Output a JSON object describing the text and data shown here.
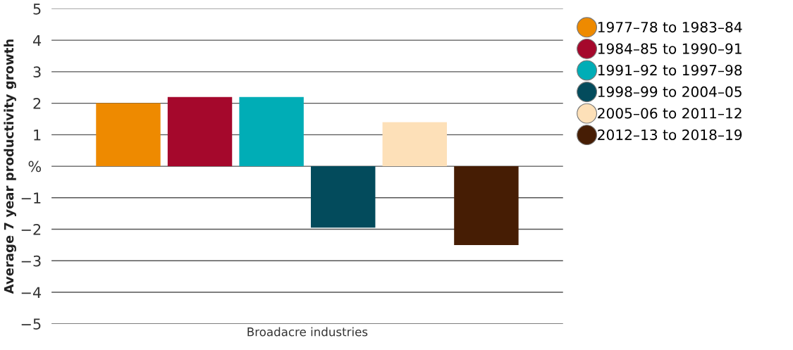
{
  "chart_data": {
    "type": "bar",
    "ylabel": "Average 7 year productivity growth",
    "categories": [
      "Broadacre industries"
    ],
    "series": [
      {
        "name": "1977–78 to 1983–84",
        "color": "#ee8a00",
        "values": [
          2.0
        ]
      },
      {
        "name": "1984–85 to 1990–91",
        "color": "#a5082c",
        "values": [
          2.2
        ]
      },
      {
        "name": "1991–92 to 1997–98",
        "color": "#00adb6",
        "values": [
          2.2
        ]
      },
      {
        "name": "1998–99 to 2004–05",
        "color": "#034b5c",
        "values": [
          -1.95
        ]
      },
      {
        "name": "2005–06 to 2011–12",
        "color": "#fde0b8",
        "values": [
          1.4
        ]
      },
      {
        "name": "2012–13 to 2018–19",
        "color": "#461d04",
        "values": [
          -2.5
        ]
      }
    ],
    "ylim": [
      -5,
      5
    ],
    "yticks": [
      -5,
      -4,
      -3,
      -2,
      -1,
      {
        "value": 0,
        "label": "%"
      },
      1,
      2,
      3,
      4,
      5
    ],
    "grid": "y",
    "legend": "right",
    "marker": "circle"
  }
}
